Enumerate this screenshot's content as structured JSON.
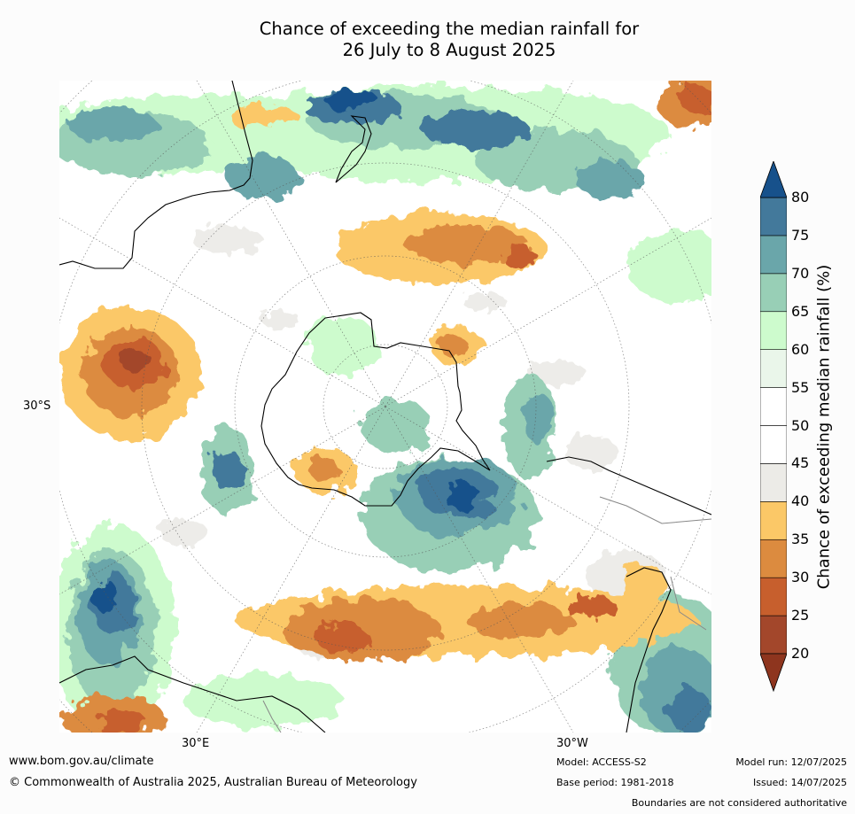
{
  "title": {
    "line1": "Chance of exceeding the median rainfall for",
    "line2": "26 July to 8 August 2025"
  },
  "map": {
    "lat_label": "30°S",
    "lon_labels": [
      "30°E",
      "30°W"
    ]
  },
  "colorbar": {
    "label": "Chance of exceeding median rainfall (%)",
    "ticks": [
      "20",
      "25",
      "30",
      "35",
      "40",
      "45",
      "50",
      "55",
      "60",
      "65",
      "70",
      "75",
      "80"
    ],
    "band_colors": [
      "#a3472b",
      "#c75f2d",
      "#dc8b3f",
      "#fbc867",
      "#ecebe7",
      "#ffffff",
      "#ffffff",
      "#eaf6ea",
      "#cdfbcd",
      "#98cfb6",
      "#6aa6aa",
      "#43799b"
    ],
    "over_color": "#17518b",
    "under_color": "#8e351e"
  },
  "footer": {
    "website": "www.bom.gov.au/climate",
    "copyright": "© Commonwealth of Australia 2025, Australian Bureau of Meteorology",
    "model": "Model: ACCESS-S2",
    "base_period": "Base period: 1981-2018",
    "model_run": "Model run: 12/07/2025",
    "issued": "Issued: 14/07/2025",
    "disclaimer": "Boundaries are not considered authoritative"
  }
}
